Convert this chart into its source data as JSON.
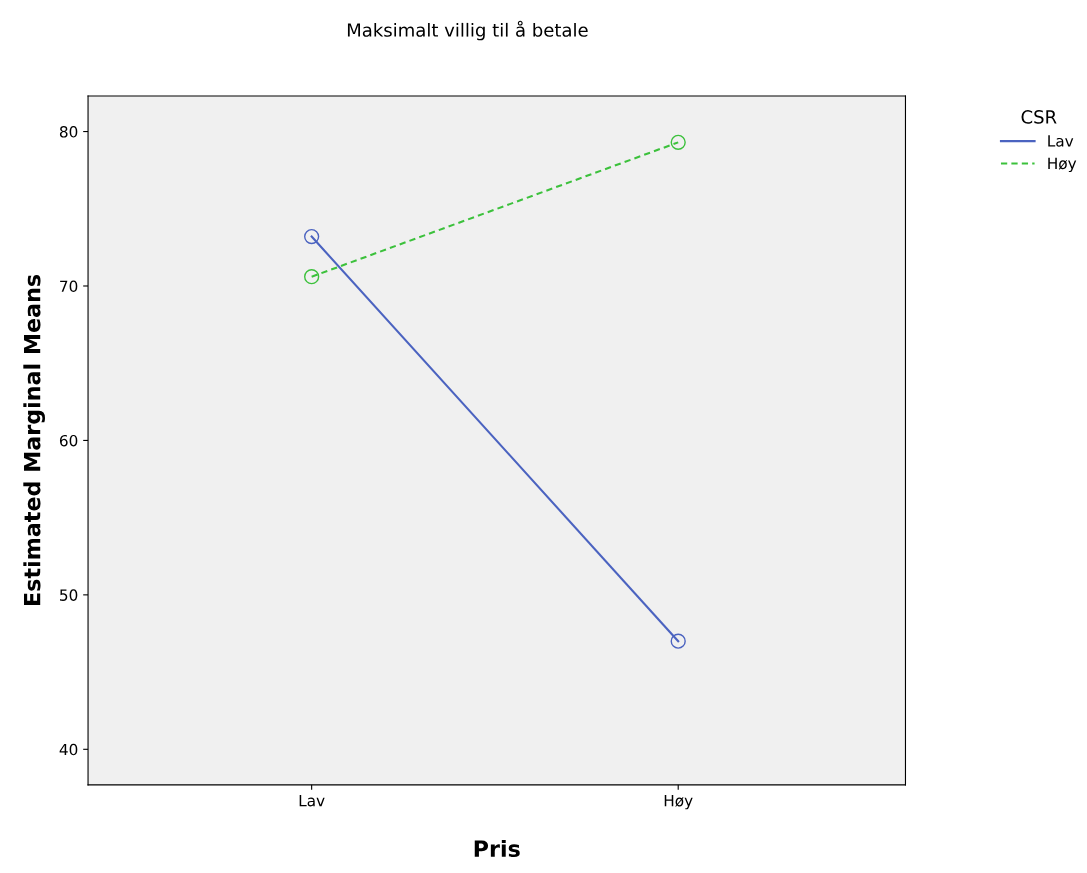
{
  "chart_data": {
    "type": "line",
    "title": "Maksimalt villig til å betale",
    "xlabel": "Pris",
    "ylabel": "Estimated Marginal Means",
    "legend_title": "CSR",
    "categories": [
      "Lav",
      "Høy"
    ],
    "series": [
      {
        "name": "Lav",
        "color": "#4b63c0",
        "values": [
          73.2,
          47.0
        ],
        "line_style": "solid"
      },
      {
        "name": "Høy",
        "color": "#3cc13c",
        "values": [
          70.6,
          79.3
        ],
        "line_style": "dashed"
      }
    ],
    "ylim": [
      37.7,
      82.3
    ],
    "yticks": [
      40,
      50,
      60,
      70,
      80
    ],
    "grid": false,
    "legend": "top right",
    "marker": "circle"
  }
}
